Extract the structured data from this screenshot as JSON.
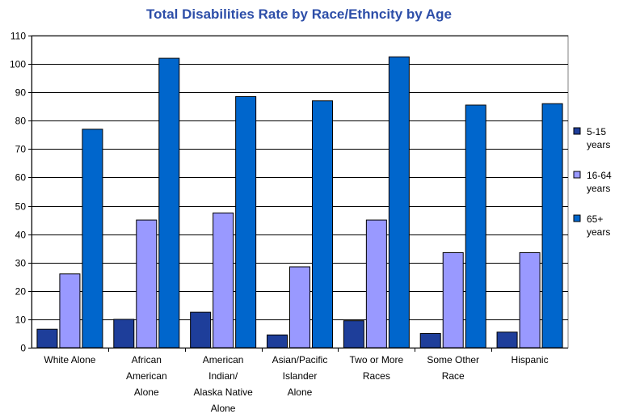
{
  "chart_data": {
    "type": "bar",
    "title": "Total Disabilities Rate by Race/Ethncity by Age",
    "title_color": "#2d4ea8",
    "xlabel": "",
    "ylabel": "",
    "ylim": [
      0,
      110
    ],
    "yticks": [
      "0",
      "10",
      "20",
      "30",
      "40",
      "50",
      "60",
      "70",
      "80",
      "90",
      "100",
      "110"
    ],
    "grid": true,
    "legend_position": "right",
    "categories": [
      [
        "White Alone"
      ],
      [
        "African",
        "American",
        "Alone"
      ],
      [
        "American",
        "Indian/",
        "Alaska Native",
        "Alone"
      ],
      [
        "Asian/Pacific",
        "Islander",
        "Alone"
      ],
      [
        "Two or More",
        "Races"
      ],
      [
        "Some Other",
        "Race"
      ],
      [
        "Hispanic"
      ]
    ],
    "series": [
      {
        "name": [
          "5-15",
          "years"
        ],
        "color": "#1e3e9a",
        "values": [
          6.5,
          10,
          12.5,
          4.5,
          9.5,
          5,
          5.5
        ]
      },
      {
        "name": [
          "16-64",
          "years"
        ],
        "color": "#9999ff",
        "values": [
          26,
          45,
          47.5,
          28.5,
          45,
          33.5,
          33.5
        ]
      },
      {
        "name": [
          "65+",
          "years"
        ],
        "color": "#0066cc",
        "values": [
          77,
          102,
          88.5,
          87,
          102.5,
          85.5,
          86
        ]
      }
    ]
  }
}
